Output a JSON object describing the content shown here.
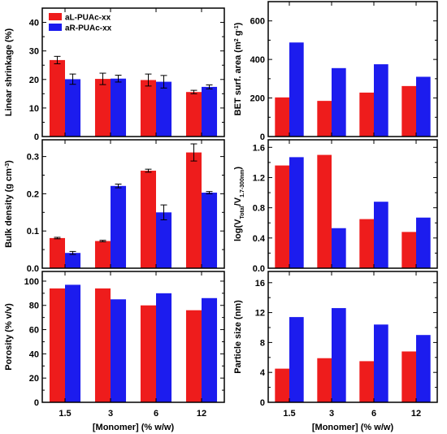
{
  "colors": {
    "series_a": "#ee1c1c",
    "series_b": "#1c1cee",
    "frame": "#000000"
  },
  "chart_data": [
    {
      "type": "bar",
      "panel": "linear-shrinkage",
      "categories": [
        "1.5",
        "3",
        "6",
        "12"
      ],
      "ylabel": "Linear shrinkage (%)",
      "xlabel": "",
      "ylim": [
        0,
        45
      ],
      "yticks": [
        "0",
        "10",
        "20",
        "30",
        "40"
      ],
      "show_xticklabels": false,
      "legend": {
        "placement": "top-left",
        "entries": [
          "aL-PUAc-xx",
          "aR-PUAc-xx"
        ]
      },
      "series": [
        {
          "name": "aL-PUAc-xx",
          "values": [
            26.8,
            20.2,
            19.8,
            15.6
          ],
          "errors": [
            1.3,
            2.0,
            2.1,
            0.6
          ]
        },
        {
          "name": "aR-PUAc-xx",
          "values": [
            20.1,
            20.3,
            19.2,
            17.4
          ],
          "errors": [
            1.8,
            1.2,
            2.2,
            0.7
          ]
        }
      ]
    },
    {
      "type": "bar",
      "panel": "bet-surface-area",
      "categories": [
        "1.5",
        "3",
        "6",
        "12"
      ],
      "ylabel": "BET surf. area (m² g⁻¹)",
      "xlabel": "",
      "ylim": [
        0,
        700
      ],
      "yticks": [
        "0",
        "200",
        "400",
        "600"
      ],
      "show_xticklabels": false,
      "series": [
        {
          "name": "aL-PUAc-xx",
          "values": [
            203,
            185,
            228,
            262
          ]
        },
        {
          "name": "aR-PUAc-xx",
          "values": [
            488,
            355,
            375,
            310
          ]
        }
      ]
    },
    {
      "type": "bar",
      "panel": "bulk-density",
      "categories": [
        "1.5",
        "3",
        "6",
        "12"
      ],
      "ylabel": "Bulk density (g cm⁻³)",
      "xlabel": "",
      "ylim": [
        0,
        0.345
      ],
      "yticks": [
        "0.0",
        "0.1",
        "0.2",
        "0.3"
      ],
      "show_xticklabels": false,
      "series": [
        {
          "name": "aL-PUAc-xx",
          "values": [
            0.081,
            0.073,
            0.262,
            0.311
          ],
          "errors": [
            0.002,
            0.002,
            0.004,
            0.023
          ]
        },
        {
          "name": "aR-PUAc-xx",
          "values": [
            0.041,
            0.221,
            0.15,
            0.203
          ],
          "errors": [
            0.004,
            0.005,
            0.02,
            0.003
          ]
        }
      ]
    },
    {
      "type": "bar",
      "panel": "log-volume-ratio",
      "categories": [
        "1.5",
        "3",
        "6",
        "12"
      ],
      "ylabel": "log(V_Total/V_1.7-300nm)",
      "xlabel": "",
      "ylim": [
        0,
        1.7
      ],
      "yticks": [
        "0.0",
        "0.4",
        "0.8",
        "1.2",
        "1.6"
      ],
      "show_xticklabels": false,
      "series": [
        {
          "name": "aL-PUAc-xx",
          "values": [
            1.36,
            1.5,
            0.65,
            0.48
          ]
        },
        {
          "name": "aR-PUAc-xx",
          "values": [
            1.47,
            0.53,
            0.88,
            0.67
          ]
        }
      ]
    },
    {
      "type": "bar",
      "panel": "porosity",
      "categories": [
        "1.5",
        "3",
        "6",
        "12"
      ],
      "ylabel": "Porosity (% v/v)",
      "xlabel": "[Monomer] (% w/w)",
      "ylim": [
        0,
        108
      ],
      "yticks": [
        "0",
        "20",
        "40",
        "60",
        "80",
        "100"
      ],
      "show_xticklabels": true,
      "series": [
        {
          "name": "aL-PUAc-xx",
          "values": [
            94,
            94,
            80,
            76
          ]
        },
        {
          "name": "aR-PUAc-xx",
          "values": [
            97,
            85,
            90,
            86
          ]
        }
      ]
    },
    {
      "type": "bar",
      "panel": "particle-size",
      "categories": [
        "1.5",
        "3",
        "6",
        "12"
      ],
      "ylabel": "Particle size (nm)",
      "xlabel": "[Monomer] (% w/w)",
      "ylim": [
        0,
        17.5
      ],
      "yticks": [
        "0",
        "4",
        "8",
        "12",
        "16"
      ],
      "show_xticklabels": true,
      "series": [
        {
          "name": "aL-PUAc-xx",
          "values": [
            4.5,
            5.9,
            5.5,
            6.8
          ]
        },
        {
          "name": "aR-PUAc-xx",
          "values": [
            11.4,
            12.6,
            10.4,
            9.0
          ]
        }
      ]
    }
  ]
}
